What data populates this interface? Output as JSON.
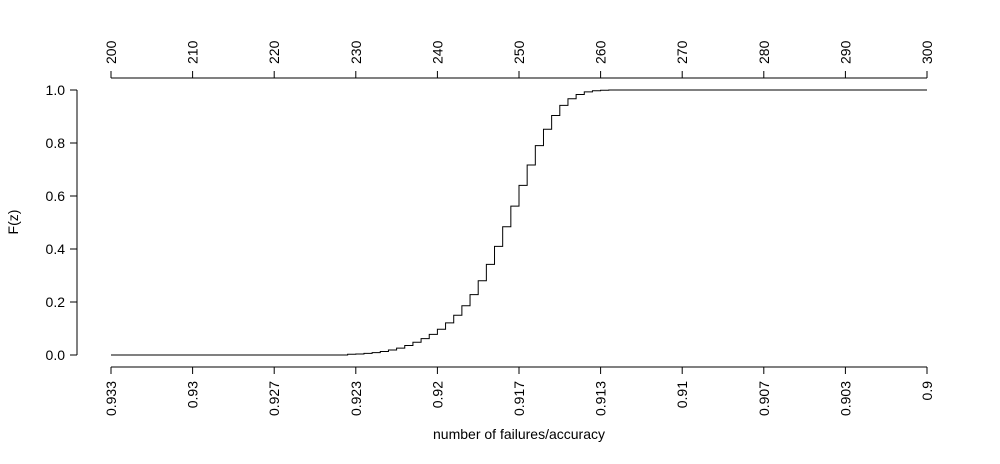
{
  "chart_data": {
    "type": "line",
    "title": "",
    "xlabel": "number of failures/accuracy",
    "ylabel": "F(z)",
    "xlim": [
      200,
      300
    ],
    "ylim": [
      0,
      1
    ],
    "top_axis": {
      "ticks": [
        200,
        210,
        220,
        230,
        240,
        250,
        260,
        270,
        280,
        290,
        300
      ],
      "tick_labels": [
        "200",
        "210",
        "220",
        "230",
        "240",
        "250",
        "260",
        "270",
        "280",
        "290",
        "300"
      ]
    },
    "bottom_axis": {
      "ticks": [
        200,
        210,
        220,
        230,
        240,
        250,
        260,
        270,
        280,
        290,
        300
      ],
      "tick_labels": [
        "0.933",
        "0.93",
        "0.927",
        "0.923",
        "0.92",
        "0.917",
        "0.913",
        "0.91",
        "0.907",
        "0.903",
        "0.9"
      ]
    },
    "y_axis": {
      "ticks": [
        0,
        0.2,
        0.4,
        0.6,
        0.8,
        1.0
      ],
      "tick_labels": [
        "0.0",
        "0.2",
        "0.4",
        "0.6",
        "0.8",
        "1.0"
      ]
    },
    "grid": false,
    "series": [
      {
        "style": "step",
        "x": [
          200,
          229,
          230,
          231,
          232,
          233,
          234,
          235,
          236,
          237,
          238,
          239,
          240,
          241,
          242,
          243,
          244,
          245,
          246,
          247,
          248,
          249,
          250,
          251,
          252,
          253,
          254,
          255,
          256,
          257,
          258,
          259,
          260,
          261,
          300
        ],
        "y": [
          0.0,
          0.003,
          0.004,
          0.006,
          0.009,
          0.013,
          0.019,
          0.026,
          0.036,
          0.048,
          0.062,
          0.078,
          0.097,
          0.121,
          0.15,
          0.186,
          0.228,
          0.28,
          0.342,
          0.41,
          0.484,
          0.562,
          0.64,
          0.717,
          0.79,
          0.852,
          0.904,
          0.942,
          0.967,
          0.983,
          0.993,
          0.997,
          0.999,
          1.0,
          1.0
        ]
      }
    ]
  }
}
